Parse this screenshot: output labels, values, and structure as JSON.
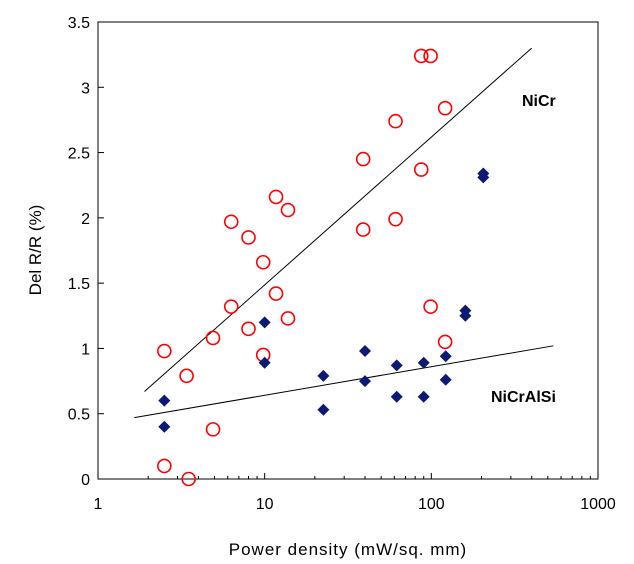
{
  "chart_data": {
    "type": "scatter",
    "xlabel": "Power density (mW/sq. mm)",
    "ylabel": "Del R/R (%)",
    "xscale": "log",
    "xlim": [
      1,
      1000
    ],
    "ylim": [
      0,
      3.5
    ],
    "xticks": [
      1,
      10,
      100,
      1000
    ],
    "xtick_labels": [
      "1",
      "10",
      "100",
      "1000"
    ],
    "yticks": [
      0,
      0.5,
      1,
      1.5,
      2,
      2.5,
      3,
      3.5
    ],
    "ytick_labels": [
      "0",
      "0.5",
      "1",
      "1.5",
      "2",
      "2.5",
      "3",
      "3.5"
    ],
    "grid": false,
    "series": [
      {
        "name": "NiCr",
        "marker": "open-circle",
        "color": "#ff0000",
        "points": [
          {
            "x": 2.5,
            "y": 0.98
          },
          {
            "x": 2.5,
            "y": 0.1
          },
          {
            "x": 3.4,
            "y": 0.79
          },
          {
            "x": 3.5,
            "y": 0.0
          },
          {
            "x": 4.9,
            "y": 1.08
          },
          {
            "x": 4.9,
            "y": 0.38
          },
          {
            "x": 6.3,
            "y": 1.97
          },
          {
            "x": 6.3,
            "y": 1.32
          },
          {
            "x": 8.0,
            "y": 1.85
          },
          {
            "x": 8.0,
            "y": 1.15
          },
          {
            "x": 9.8,
            "y": 1.66
          },
          {
            "x": 9.8,
            "y": 0.95
          },
          {
            "x": 11.7,
            "y": 2.16
          },
          {
            "x": 11.7,
            "y": 1.42
          },
          {
            "x": 13.8,
            "y": 2.06
          },
          {
            "x": 13.8,
            "y": 1.23
          },
          {
            "x": 39.0,
            "y": 2.45
          },
          {
            "x": 39.0,
            "y": 1.91
          },
          {
            "x": 61.0,
            "y": 2.74
          },
          {
            "x": 61.0,
            "y": 1.99
          },
          {
            "x": 87.0,
            "y": 3.24
          },
          {
            "x": 87.0,
            "y": 2.37
          },
          {
            "x": 99.0,
            "y": 3.24
          },
          {
            "x": 99.0,
            "y": 1.32
          },
          {
            "x": 121.0,
            "y": 2.84
          },
          {
            "x": 121.0,
            "y": 1.05
          }
        ],
        "fit": [
          [
            1.9,
            0.67
          ],
          [
            400,
            3.3
          ]
        ]
      },
      {
        "name": "NiCrAlSi",
        "marker": "filled-diamond",
        "color": "#0d1a73",
        "points": [
          {
            "x": 2.5,
            "y": 0.6
          },
          {
            "x": 2.5,
            "y": 0.4
          },
          {
            "x": 10.0,
            "y": 1.2
          },
          {
            "x": 10.0,
            "y": 0.89
          },
          {
            "x": 22.5,
            "y": 0.79
          },
          {
            "x": 22.5,
            "y": 0.53
          },
          {
            "x": 40.0,
            "y": 0.98
          },
          {
            "x": 40.0,
            "y": 0.75
          },
          {
            "x": 62.0,
            "y": 0.87
          },
          {
            "x": 62.0,
            "y": 0.63
          },
          {
            "x": 90.0,
            "y": 0.89
          },
          {
            "x": 90.0,
            "y": 0.63
          },
          {
            "x": 122.0,
            "y": 0.94
          },
          {
            "x": 122.0,
            "y": 0.76
          },
          {
            "x": 160.0,
            "y": 1.29
          },
          {
            "x": 160.0,
            "y": 1.25
          },
          {
            "x": 205.0,
            "y": 2.34
          },
          {
            "x": 205.0,
            "y": 2.31
          }
        ],
        "fit": [
          [
            1.65,
            0.47
          ],
          [
            540,
            1.02
          ]
        ]
      }
    ],
    "annotations": [
      "NiCr",
      "NiCrAlSi"
    ]
  }
}
